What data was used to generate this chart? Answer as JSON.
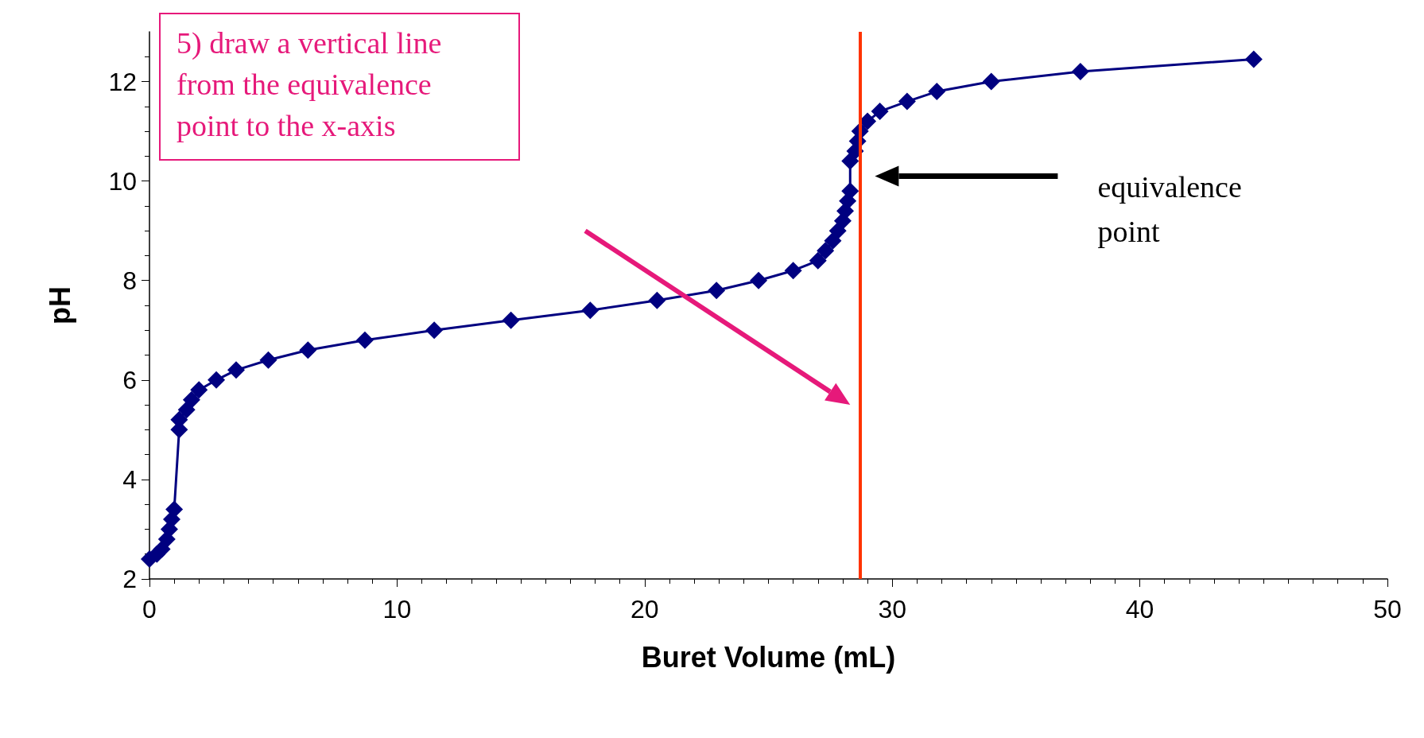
{
  "chart_data": {
    "type": "line",
    "xlabel": "Buret Volume (mL)",
    "ylabel": "pH",
    "x": [
      0,
      0.3,
      0.5,
      0.7,
      0.8,
      0.9,
      1.0,
      1.2,
      1.2,
      1.5,
      1.7,
      2.0,
      2.7,
      3.5,
      4.8,
      6.4,
      8.7,
      11.5,
      14.6,
      17.8,
      20.5,
      22.9,
      24.6,
      26.0,
      27.0,
      27.3,
      27.6,
      27.8,
      28.0,
      28.1,
      28.2,
      28.3,
      28.3,
      28.5,
      28.6,
      28.7,
      29.0,
      29.5,
      30.6,
      31.8,
      34.0,
      37.6,
      44.6
    ],
    "series": [
      {
        "color": "#000080",
        "values": [
          2.4,
          2.5,
          2.6,
          2.8,
          3.0,
          3.2,
          3.4,
          5.0,
          5.2,
          5.4,
          5.6,
          5.8,
          6.0,
          6.2,
          6.4,
          6.6,
          6.8,
          7.0,
          7.2,
          7.4,
          7.6,
          7.8,
          8.0,
          8.2,
          8.4,
          8.6,
          8.8,
          9.0,
          9.2,
          9.4,
          9.6,
          9.8,
          10.4,
          10.6,
          10.8,
          11.0,
          11.2,
          11.4,
          11.6,
          11.8,
          12.0,
          12.2,
          12.45
        ]
      }
    ],
    "marker": "diamond",
    "line_style": "solid",
    "xlim": [
      0,
      50
    ],
    "xticks": [
      0,
      10,
      20,
      30,
      40,
      50
    ],
    "ylim": [
      2,
      13
    ],
    "yticks": [
      2,
      4,
      6,
      8,
      10,
      12
    ],
    "ref_lines": [
      {
        "axis": "x",
        "value": 28.7,
        "color": "#ff3300"
      }
    ],
    "annotations": [
      "5) draw a vertical line from the equivalence point to the x-axis",
      "equivalence point"
    ]
  }
}
